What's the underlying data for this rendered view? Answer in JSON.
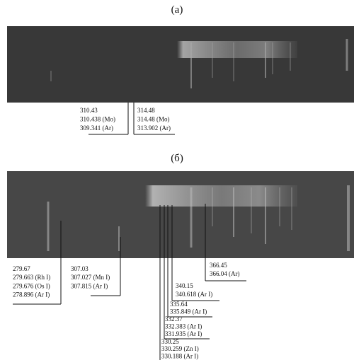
{
  "panels": [
    {
      "label": "(а)",
      "annotations": [
        {
          "lines": [
            "310.43",
            "310.438 (Mo)",
            "309.341 (Ar)"
          ]
        },
        {
          "lines": [
            "314.48",
            "314.48 (Mo)",
            "313.902 (Ar)"
          ]
        }
      ]
    },
    {
      "label": "(б)",
      "annotations": [
        {
          "lines": [
            "279.67",
            "279.663 (Rh I)",
            "279.676 (Os I)",
            "278.896 (Ar I)"
          ]
        },
        {
          "lines": [
            "307.03",
            "307.027 (Mn I)",
            "307.815 (Ar I)"
          ]
        },
        {
          "lines": [
            "366.45",
            "366.04 (Ar)"
          ]
        },
        {
          "lines": [
            "340.15",
            "340.618 (Ar I)"
          ]
        },
        {
          "lines": [
            "335.64",
            "335.849 (Ar I)"
          ]
        },
        {
          "lines": [
            "332.37",
            "332.383 (Ar I)",
            "331.935 (Ar I)"
          ]
        },
        {
          "lines": [
            "330.25",
            "330.259 (Zn I)",
            "330.188 (Ar I)"
          ]
        }
      ]
    }
  ]
}
